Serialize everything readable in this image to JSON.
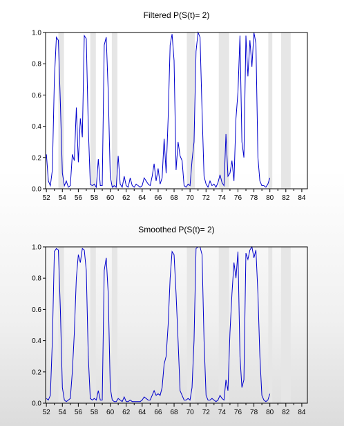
{
  "chart_data": [
    {
      "type": "line",
      "title": "Filtered P(S(t)= 2)",
      "xlabel": "",
      "ylabel": "",
      "xlim": [
        1951.9,
        1984.7
      ],
      "ylim": [
        0,
        1
      ],
      "grid": false,
      "x_ticks": [
        "52",
        "54",
        "56",
        "58",
        "60",
        "62",
        "64",
        "66",
        "68",
        "70",
        "72",
        "74",
        "76",
        "78",
        "80",
        "82",
        "84"
      ],
      "y_ticks": [
        "0.0",
        "0.2",
        "0.4",
        "0.6",
        "0.8",
        "1.0"
      ],
      "shaded_periods": [
        [
          1953.5,
          1954.2
        ],
        [
          1957.5,
          1958.2
        ],
        [
          1960.2,
          1960.9
        ],
        [
          1969.6,
          1970.6
        ],
        [
          1973.6,
          1974.9
        ],
        [
          1979.8,
          1980.3
        ],
        [
          1981.4,
          1982.6
        ]
      ],
      "series": [
        {
          "color": "#0000cc",
          "x_start": 1952.0,
          "x_step": 0.25,
          "values": [
            0.22,
            0.05,
            0.02,
            0.12,
            0.7,
            0.97,
            0.95,
            0.55,
            0.1,
            0.02,
            0.05,
            0.01,
            0.02,
            0.22,
            0.18,
            0.52,
            0.17,
            0.45,
            0.33,
            0.98,
            0.96,
            0.4,
            0.03,
            0.02,
            0.03,
            0.01,
            0.19,
            0.02,
            0.02,
            0.92,
            0.97,
            0.62,
            0.08,
            0.01,
            0.02,
            0.01,
            0.21,
            0.03,
            0.01,
            0.08,
            0.02,
            0.01,
            0.07,
            0.02,
            0.01,
            0.03,
            0.02,
            0.01,
            0.02,
            0.07,
            0.05,
            0.03,
            0.02,
            0.08,
            0.16,
            0.05,
            0.13,
            0.03,
            0.07,
            0.32,
            0.1,
            0.45,
            0.92,
            0.99,
            0.82,
            0.12,
            0.3,
            0.21,
            0.18,
            0.02,
            0.01,
            0.03,
            0.02,
            0.18,
            0.3,
            0.88,
            1.0,
            0.97,
            0.5,
            0.08,
            0.03,
            0.01,
            0.05,
            0.02,
            0.03,
            0.01,
            0.04,
            0.09,
            0.04,
            0.02,
            0.35,
            0.08,
            0.1,
            0.18,
            0.05,
            0.45,
            0.62,
            0.98,
            0.3,
            0.2,
            0.98,
            0.72,
            0.95,
            0.78,
            1.0,
            0.93,
            0.2,
            0.05,
            0.02,
            0.02,
            0.01,
            0.03,
            0.07
          ]
        }
      ]
    },
    {
      "type": "line",
      "title": "Smoothed P(S(t)= 2)",
      "xlabel": "",
      "ylabel": "",
      "xlim": [
        1951.9,
        1984.7
      ],
      "ylim": [
        0,
        1
      ],
      "grid": false,
      "x_ticks": [
        "52",
        "54",
        "56",
        "58",
        "60",
        "62",
        "64",
        "66",
        "68",
        "70",
        "72",
        "74",
        "76",
        "78",
        "80",
        "82",
        "84"
      ],
      "y_ticks": [
        "0.0",
        "0.2",
        "0.4",
        "0.6",
        "0.8",
        "1.0"
      ],
      "shaded_periods": [
        [
          1953.5,
          1954.2
        ],
        [
          1957.5,
          1958.2
        ],
        [
          1960.2,
          1960.9
        ],
        [
          1969.6,
          1970.6
        ],
        [
          1973.6,
          1974.9
        ],
        [
          1979.8,
          1980.3
        ],
        [
          1981.4,
          1982.6
        ]
      ],
      "series": [
        {
          "color": "#0000cc",
          "x_start": 1952.0,
          "x_step": 0.25,
          "values": [
            0.03,
            0.02,
            0.05,
            0.4,
            0.97,
            0.99,
            0.98,
            0.6,
            0.1,
            0.02,
            0.01,
            0.02,
            0.03,
            0.2,
            0.45,
            0.8,
            0.95,
            0.9,
            0.99,
            0.98,
            0.85,
            0.3,
            0.03,
            0.02,
            0.03,
            0.02,
            0.08,
            0.02,
            0.02,
            0.85,
            0.93,
            0.7,
            0.1,
            0.02,
            0.01,
            0.01,
            0.03,
            0.02,
            0.01,
            0.04,
            0.01,
            0.01,
            0.02,
            0.01,
            0.01,
            0.01,
            0.01,
            0.01,
            0.02,
            0.04,
            0.03,
            0.02,
            0.02,
            0.05,
            0.08,
            0.05,
            0.06,
            0.05,
            0.1,
            0.25,
            0.3,
            0.5,
            0.8,
            0.97,
            0.95,
            0.7,
            0.4,
            0.08,
            0.05,
            0.02,
            0.02,
            0.03,
            0.02,
            0.1,
            0.4,
            0.99,
            1.0,
            1.0,
            0.95,
            0.4,
            0.05,
            0.02,
            0.02,
            0.03,
            0.02,
            0.01,
            0.02,
            0.05,
            0.03,
            0.02,
            0.15,
            0.08,
            0.45,
            0.7,
            0.9,
            0.8,
            0.97,
            0.3,
            0.1,
            0.15,
            0.96,
            0.92,
            0.98,
            1.0,
            0.93,
            0.98,
            0.7,
            0.3,
            0.05,
            0.02,
            0.01,
            0.02,
            0.06
          ]
        }
      ]
    }
  ]
}
